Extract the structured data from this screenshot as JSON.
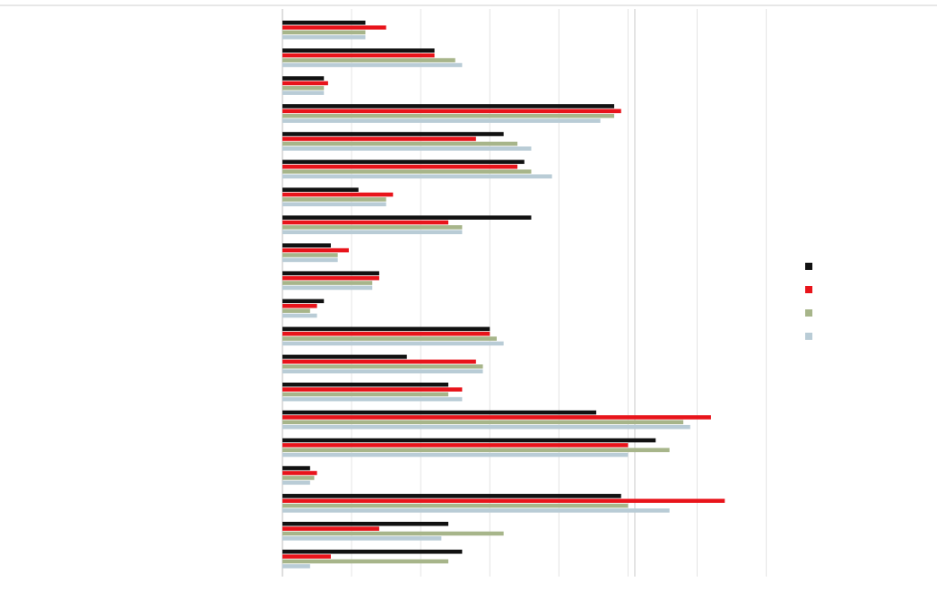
{
  "chart_data": {
    "type": "bar",
    "orientation": "horizontal",
    "title": "",
    "xlabel": "",
    "ylabel": "",
    "categories": [
      "",
      "",
      "",
      "",
      "",
      "",
      "",
      "",
      "",
      "",
      "",
      "",
      "",
      "",
      "",
      "",
      "",
      "",
      "",
      ""
    ],
    "series": [
      {
        "color": "#111111",
        "values": [
          6.0,
          11.0,
          3.0,
          24.0,
          16.0,
          17.5,
          5.5,
          18.0,
          3.5,
          7.0,
          3.0,
          15.0,
          9.0,
          12.0,
          22.7,
          27.0,
          2.0,
          24.5,
          12.0,
          13.0
        ]
      },
      {
        "color": "#e8141b",
        "values": [
          7.5,
          11.0,
          3.3,
          24.5,
          14.0,
          17.0,
          8.0,
          12.0,
          4.8,
          7.0,
          2.5,
          15.0,
          14.0,
          13.0,
          31.0,
          25.0,
          2.5,
          32.0,
          7.0,
          3.5
        ]
      },
      {
        "color": "#a7b58a",
        "values": [
          6.0,
          12.5,
          3.0,
          24.0,
          17.0,
          18.0,
          7.5,
          13.0,
          4.0,
          6.5,
          2.0,
          15.5,
          14.5,
          12.0,
          29.0,
          28.0,
          2.3,
          25.0,
          16.0,
          12.0
        ]
      },
      {
        "color": "#b9ccd6",
        "values": [
          6.0,
          13.0,
          3.0,
          23.0,
          18.0,
          19.5,
          7.5,
          13.0,
          4.0,
          6.5,
          2.5,
          16.0,
          14.5,
          13.0,
          29.5,
          25.0,
          2.0,
          28.0,
          11.5,
          2.0
        ]
      }
    ],
    "xlim": [
      0,
      36
    ],
    "x_ticks": [
      0,
      5,
      10,
      15,
      20,
      25,
      30,
      35
    ],
    "x_tick_labels": [
      "",
      "",
      "",
      "",
      "",
      "",
      "",
      ""
    ],
    "grid": true,
    "legend_position": "right",
    "legend_entries": [
      {
        "color": "#111111",
        "label": ""
      },
      {
        "color": "#e8141b",
        "label": ""
      },
      {
        "color": "#a7b58a",
        "label": ""
      },
      {
        "color": "#b9ccd6",
        "label": ""
      }
    ]
  }
}
